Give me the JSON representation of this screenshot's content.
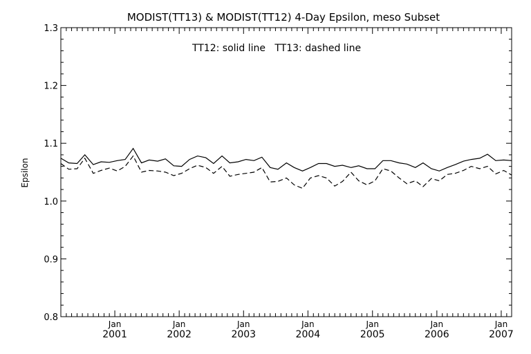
{
  "chart_data": {
    "type": "line",
    "title": "MODIST(TT13) & MODIST(TT12) 4-Day Epsilon, meso Subset",
    "annotation": "TT12: solid line   TT13: dashed line",
    "xlabel": "",
    "ylabel": "Epsilon",
    "ylim": [
      0.8,
      1.3
    ],
    "xlim": [
      "2000-03-01",
      "2007-03-01"
    ],
    "y_ticks": [
      "0.8",
      "0.9",
      "1.0",
      "1.1",
      "1.2",
      "1.3"
    ],
    "x_ticks": [
      {
        "month": "Jan",
        "year": "2001",
        "date": "2001-01-01"
      },
      {
        "month": "Jan",
        "year": "2002",
        "date": "2002-01-01"
      },
      {
        "month": "Jan",
        "year": "2003",
        "date": "2003-01-01"
      },
      {
        "month": "Jan",
        "year": "2004",
        "date": "2004-01-01"
      },
      {
        "month": "Jan",
        "year": "2005",
        "date": "2005-01-01"
      },
      {
        "month": "Jan",
        "year": "2006",
        "date": "2006-01-01"
      },
      {
        "month": "Jan",
        "year": "2007",
        "date": "2007-01-01"
      }
    ],
    "grid": false,
    "line_color": "#000000",
    "series": [
      {
        "name": "TT12",
        "style": "solid",
        "x": [
          "2000-03-01",
          "2000-04-15",
          "2000-06-01",
          "2000-07-15",
          "2000-09-01",
          "2000-10-15",
          "2000-12-01",
          "2001-01-15",
          "2001-03-01",
          "2001-04-15",
          "2001-06-01",
          "2001-07-15",
          "2001-09-01",
          "2001-10-15",
          "2001-12-01",
          "2002-01-15",
          "2002-03-01",
          "2002-04-15",
          "2002-06-01",
          "2002-07-15",
          "2002-09-01",
          "2002-10-15",
          "2002-12-01",
          "2003-01-15",
          "2003-03-01",
          "2003-04-15",
          "2003-06-01",
          "2003-07-15",
          "2003-09-01",
          "2003-10-15",
          "2003-12-01",
          "2004-01-15",
          "2004-03-01",
          "2004-04-15",
          "2004-06-01",
          "2004-07-15",
          "2004-09-01",
          "2004-10-15",
          "2004-12-01",
          "2005-01-15",
          "2005-03-01",
          "2005-04-15",
          "2005-06-01",
          "2005-07-15",
          "2005-09-01",
          "2005-10-15",
          "2005-12-01",
          "2006-01-15",
          "2006-03-01",
          "2006-04-15",
          "2006-06-01",
          "2006-07-15",
          "2006-09-01",
          "2006-10-15",
          "2006-12-01",
          "2007-01-15",
          "2007-03-01"
        ],
        "values": [
          1.074,
          1.066,
          1.065,
          1.08,
          1.063,
          1.068,
          1.067,
          1.07,
          1.072,
          1.091,
          1.066,
          1.071,
          1.069,
          1.073,
          1.061,
          1.06,
          1.072,
          1.078,
          1.075,
          1.065,
          1.078,
          1.066,
          1.068,
          1.072,
          1.07,
          1.076,
          1.058,
          1.055,
          1.066,
          1.058,
          1.052,
          1.058,
          1.065,
          1.065,
          1.06,
          1.062,
          1.058,
          1.061,
          1.056,
          1.056,
          1.07,
          1.07,
          1.066,
          1.064,
          1.058,
          1.066,
          1.056,
          1.052,
          1.058,
          1.063,
          1.069,
          1.072,
          1.074,
          1.081,
          1.07,
          1.071,
          1.07
        ]
      },
      {
        "name": "TT13",
        "style": "dashed",
        "x": [
          "2000-03-01",
          "2000-04-15",
          "2000-06-01",
          "2000-07-15",
          "2000-09-01",
          "2000-10-15",
          "2000-12-01",
          "2001-01-15",
          "2001-03-01",
          "2001-04-15",
          "2001-06-01",
          "2001-07-15",
          "2001-09-01",
          "2001-10-15",
          "2001-12-01",
          "2002-01-15",
          "2002-03-01",
          "2002-04-15",
          "2002-06-01",
          "2002-07-15",
          "2002-09-01",
          "2002-10-15",
          "2002-12-01",
          "2003-01-15",
          "2003-03-01",
          "2003-04-15",
          "2003-06-01",
          "2003-07-15",
          "2003-09-01",
          "2003-10-15",
          "2003-12-01",
          "2004-01-15",
          "2004-03-01",
          "2004-04-15",
          "2004-06-01",
          "2004-07-15",
          "2004-09-01",
          "2004-10-15",
          "2004-12-01",
          "2005-01-15",
          "2005-03-01",
          "2005-04-15",
          "2005-06-01",
          "2005-07-15",
          "2005-09-01",
          "2005-10-15",
          "2005-12-01",
          "2006-01-15",
          "2006-03-01",
          "2006-04-15",
          "2006-06-01",
          "2006-07-15",
          "2006-09-01",
          "2006-10-15",
          "2006-12-01",
          "2007-01-15",
          "2007-03-01"
        ],
        "values": [
          1.065,
          1.055,
          1.056,
          1.074,
          1.048,
          1.053,
          1.057,
          1.052,
          1.06,
          1.078,
          1.05,
          1.053,
          1.052,
          1.05,
          1.044,
          1.048,
          1.056,
          1.062,
          1.058,
          1.048,
          1.06,
          1.043,
          1.046,
          1.048,
          1.05,
          1.058,
          1.033,
          1.034,
          1.04,
          1.028,
          1.022,
          1.04,
          1.044,
          1.04,
          1.026,
          1.034,
          1.05,
          1.035,
          1.028,
          1.035,
          1.056,
          1.052,
          1.04,
          1.03,
          1.035,
          1.025,
          1.039,
          1.035,
          1.046,
          1.048,
          1.053,
          1.06,
          1.056,
          1.06,
          1.047,
          1.053,
          1.045
        ]
      }
    ]
  }
}
